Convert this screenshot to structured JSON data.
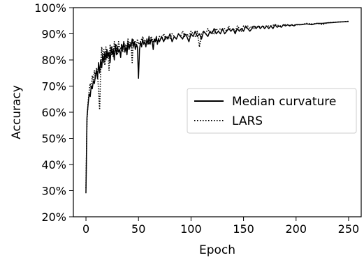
{
  "chart_data": {
    "type": "line",
    "title": "",
    "xlabel": "Epoch",
    "ylabel": "Accuracy",
    "xlim": [
      -12,
      262
    ],
    "ylim": [
      20,
      100
    ],
    "x_ticks": [
      0,
      50,
      100,
      150,
      200,
      250
    ],
    "y_ticks": [
      20,
      30,
      40,
      50,
      60,
      70,
      80,
      90,
      100
    ],
    "y_tick_labels": [
      "20%",
      "30%",
      "40%",
      "50%",
      "60%",
      "70%",
      "80%",
      "90%",
      "100%"
    ],
    "grid": false,
    "legend_position": "center-right",
    "series": [
      {
        "name": "Median curvature",
        "style": "solid",
        "color": "#000000",
        "points": [
          [
            0,
            29
          ],
          [
            1,
            58
          ],
          [
            2,
            63
          ],
          [
            3,
            67
          ],
          [
            4,
            66
          ],
          [
            5,
            70
          ],
          [
            6,
            69
          ],
          [
            7,
            72
          ],
          [
            8,
            71
          ],
          [
            9,
            74
          ],
          [
            10,
            76
          ],
          [
            11,
            73
          ],
          [
            12,
            79
          ],
          [
            13,
            75
          ],
          [
            14,
            80
          ],
          [
            15,
            77
          ],
          [
            16,
            82
          ],
          [
            17,
            79
          ],
          [
            18,
            83
          ],
          [
            19,
            80
          ],
          [
            20,
            84
          ],
          [
            21,
            81
          ],
          [
            22,
            83
          ],
          [
            23,
            79
          ],
          [
            24,
            85
          ],
          [
            25,
            82
          ],
          [
            26,
            84
          ],
          [
            27,
            80
          ],
          [
            28,
            86
          ],
          [
            29,
            82
          ],
          [
            30,
            85
          ],
          [
            31,
            83
          ],
          [
            32,
            84
          ],
          [
            33,
            81
          ],
          [
            34,
            86
          ],
          [
            35,
            84
          ],
          [
            36,
            87
          ],
          [
            37,
            83
          ],
          [
            38,
            85
          ],
          [
            39,
            82
          ],
          [
            40,
            87
          ],
          [
            41,
            84
          ],
          [
            42,
            86
          ],
          [
            43,
            85
          ],
          [
            44,
            88
          ],
          [
            45,
            85
          ],
          [
            46,
            87
          ],
          [
            47,
            84
          ],
          [
            48,
            86
          ],
          [
            49,
            85
          ],
          [
            50,
            73
          ],
          [
            51,
            84
          ],
          [
            52,
            87
          ],
          [
            53,
            85
          ],
          [
            54,
            88
          ],
          [
            55,
            86
          ],
          [
            56,
            87
          ],
          [
            57,
            85
          ],
          [
            58,
            88
          ],
          [
            59,
            86
          ],
          [
            60,
            89
          ],
          [
            61,
            86
          ],
          [
            62,
            88
          ],
          [
            63,
            87
          ],
          [
            64,
            84
          ],
          [
            65,
            88
          ],
          [
            66,
            87
          ],
          [
            67,
            89
          ],
          [
            68,
            86
          ],
          [
            69,
            88
          ],
          [
            70,
            87
          ],
          [
            72,
            89
          ],
          [
            74,
            87
          ],
          [
            76,
            89
          ],
          [
            78,
            88
          ],
          [
            80,
            90
          ],
          [
            82,
            87
          ],
          [
            84,
            89
          ],
          [
            86,
            88
          ],
          [
            88,
            90
          ],
          [
            90,
            89
          ],
          [
            92,
            88
          ],
          [
            94,
            90
          ],
          [
            96,
            89
          ],
          [
            98,
            87
          ],
          [
            100,
            90
          ],
          [
            102,
            89
          ],
          [
            104,
            91
          ],
          [
            106,
            89
          ],
          [
            108,
            90
          ],
          [
            110,
            88
          ],
          [
            112,
            91
          ],
          [
            114,
            90
          ],
          [
            116,
            89
          ],
          [
            118,
            91
          ],
          [
            120,
            90
          ],
          [
            122,
            92
          ],
          [
            124,
            90
          ],
          [
            126,
            91
          ],
          [
            128,
            90
          ],
          [
            130,
            92
          ],
          [
            132,
            90
          ],
          [
            134,
            91
          ],
          [
            136,
            92
          ],
          [
            138,
            91
          ],
          [
            140,
            92
          ],
          [
            142,
            90
          ],
          [
            144,
            92
          ],
          [
            146,
            91
          ],
          [
            148,
            92
          ],
          [
            150,
            91
          ],
          [
            152,
            93
          ],
          [
            154,
            92
          ],
          [
            156,
            91
          ],
          [
            158,
            92
          ],
          [
            160,
            93
          ],
          [
            162,
            92
          ],
          [
            164,
            93
          ],
          [
            166,
            92
          ],
          [
            168,
            93
          ],
          [
            170,
            92
          ],
          [
            172,
            93
          ],
          [
            174,
            92
          ],
          [
            176,
            93
          ],
          [
            178,
            92
          ],
          [
            180,
            93.5
          ],
          [
            182,
            92.5
          ],
          [
            184,
            93
          ],
          [
            186,
            92.5
          ],
          [
            188,
            93.5
          ],
          [
            190,
            93
          ],
          [
            192,
            93.5
          ],
          [
            194,
            93
          ],
          [
            196,
            93.5
          ],
          [
            198,
            93
          ],
          [
            200,
            93.5
          ],
          [
            205,
            93.5
          ],
          [
            210,
            93.8
          ],
          [
            215,
            93.5
          ],
          [
            220,
            94
          ],
          [
            225,
            94
          ],
          [
            230,
            94.2
          ],
          [
            235,
            94.3
          ],
          [
            240,
            94.5
          ],
          [
            245,
            94.6
          ],
          [
            250,
            94.7
          ]
        ]
      },
      {
        "name": "LARS",
        "style": "dotted",
        "color": "#000000",
        "points": [
          [
            0,
            31
          ],
          [
            1,
            57
          ],
          [
            2,
            64
          ],
          [
            3,
            68
          ],
          [
            4,
            71
          ],
          [
            5,
            69
          ],
          [
            6,
            74
          ],
          [
            7,
            72
          ],
          [
            8,
            76
          ],
          [
            9,
            73
          ],
          [
            10,
            77
          ],
          [
            11,
            75
          ],
          [
            12,
            68
          ],
          [
            13,
            61
          ],
          [
            14,
            76
          ],
          [
            15,
            85
          ],
          [
            16,
            80
          ],
          [
            17,
            84
          ],
          [
            18,
            78
          ],
          [
            19,
            85
          ],
          [
            20,
            81
          ],
          [
            21,
            83
          ],
          [
            22,
            76
          ],
          [
            23,
            86
          ],
          [
            24,
            82
          ],
          [
            25,
            85
          ],
          [
            26,
            81
          ],
          [
            27,
            87
          ],
          [
            28,
            84
          ],
          [
            29,
            86
          ],
          [
            30,
            82
          ],
          [
            31,
            87
          ],
          [
            32,
            85
          ],
          [
            33,
            84
          ],
          [
            34,
            86
          ],
          [
            35,
            83
          ],
          [
            36,
            87
          ],
          [
            37,
            85
          ],
          [
            38,
            86
          ],
          [
            39,
            84
          ],
          [
            40,
            88
          ],
          [
            41,
            85
          ],
          [
            42,
            87
          ],
          [
            43,
            86
          ],
          [
            44,
            79
          ],
          [
            45,
            88
          ],
          [
            46,
            86
          ],
          [
            47,
            87
          ],
          [
            48,
            85
          ],
          [
            49,
            88
          ],
          [
            50,
            86
          ],
          [
            52,
            87
          ],
          [
            54,
            89
          ],
          [
            56,
            87
          ],
          [
            58,
            88
          ],
          [
            60,
            86
          ],
          [
            62,
            89
          ],
          [
            64,
            87
          ],
          [
            66,
            88
          ],
          [
            68,
            87
          ],
          [
            70,
            89
          ],
          [
            72,
            88
          ],
          [
            74,
            90
          ],
          [
            76,
            88
          ],
          [
            78,
            89
          ],
          [
            80,
            88
          ],
          [
            82,
            90
          ],
          [
            84,
            89
          ],
          [
            86,
            88
          ],
          [
            88,
            90
          ],
          [
            90,
            89
          ],
          [
            92,
            91
          ],
          [
            94,
            89
          ],
          [
            96,
            90
          ],
          [
            98,
            89
          ],
          [
            100,
            91
          ],
          [
            102,
            90
          ],
          [
            104,
            89
          ],
          [
            106,
            91
          ],
          [
            108,
            85
          ],
          [
            110,
            90
          ],
          [
            112,
            91
          ],
          [
            114,
            90
          ],
          [
            116,
            92
          ],
          [
            118,
            90
          ],
          [
            120,
            91
          ],
          [
            122,
            90
          ],
          [
            124,
            92
          ],
          [
            126,
            91
          ],
          [
            128,
            92
          ],
          [
            130,
            91
          ],
          [
            132,
            92
          ],
          [
            134,
            91
          ],
          [
            136,
            93
          ],
          [
            138,
            91
          ],
          [
            140,
            92
          ],
          [
            142,
            91
          ],
          [
            144,
            93
          ],
          [
            146,
            92
          ],
          [
            148,
            91
          ],
          [
            150,
            93
          ],
          [
            152,
            92
          ],
          [
            154,
            93
          ],
          [
            156,
            92
          ],
          [
            158,
            93
          ],
          [
            160,
            92
          ],
          [
            162,
            93
          ],
          [
            164,
            92.5
          ],
          [
            166,
            93
          ],
          [
            168,
            92.5
          ],
          [
            170,
            93
          ],
          [
            175,
            93
          ],
          [
            180,
            93.5
          ],
          [
            185,
            93
          ],
          [
            190,
            93.5
          ],
          [
            195,
            93.2
          ],
          [
            200,
            93.5
          ],
          [
            205,
            93.5
          ],
          [
            210,
            94
          ],
          [
            215,
            93.8
          ],
          [
            220,
            94
          ],
          [
            225,
            93.5
          ],
          [
            230,
            94.2
          ],
          [
            235,
            94.4
          ],
          [
            240,
            94.5
          ],
          [
            245,
            94.6
          ],
          [
            250,
            94.8
          ]
        ]
      }
    ]
  }
}
